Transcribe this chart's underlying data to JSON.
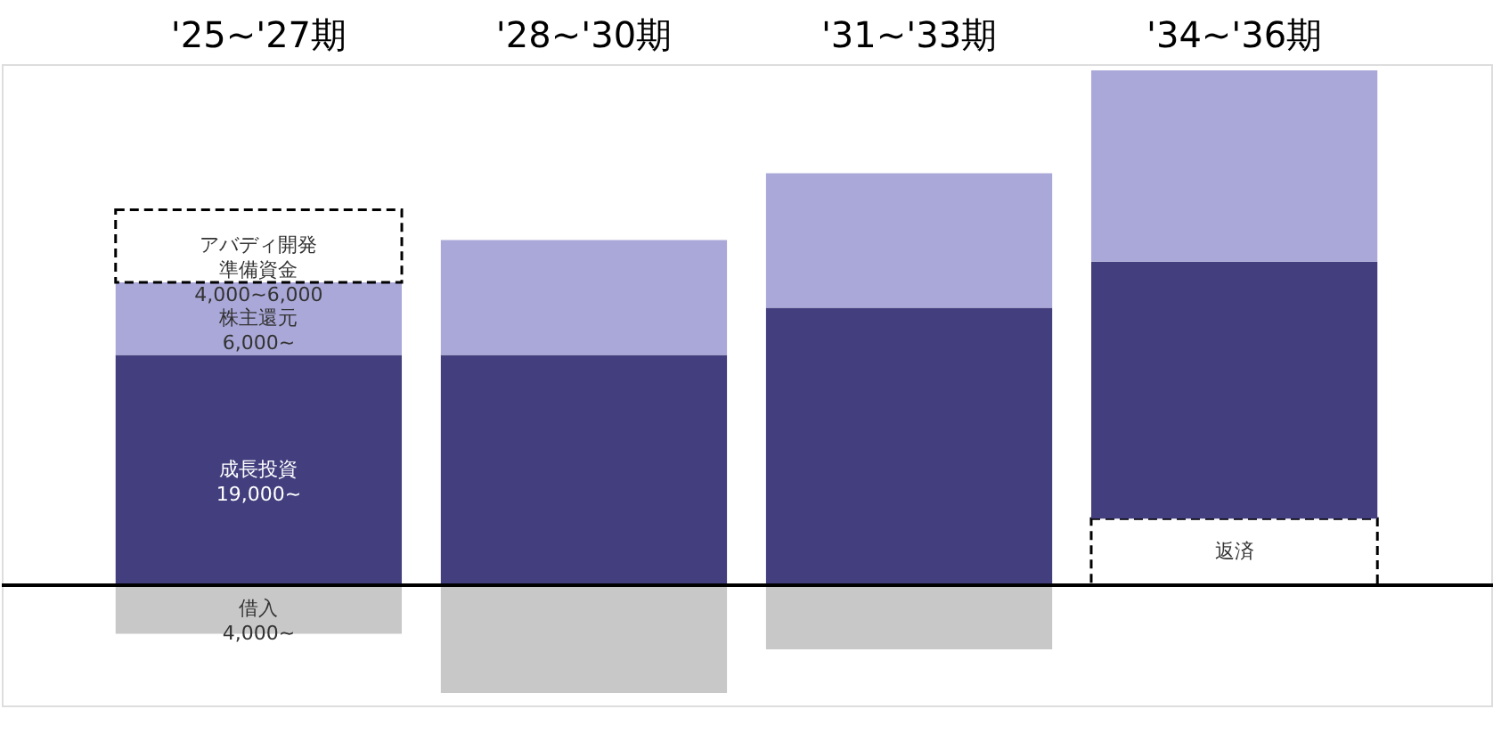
{
  "chart_data": {
    "type": "bar",
    "stacked": true,
    "categories": [
      "'25~'27期",
      "'28~'30期",
      "'31~'33期",
      "'34~'36期"
    ],
    "series": [
      {
        "color": "#ffffff",
        "line_style": "dashed",
        "values": [
          null,
          null,
          null,
          5500
        ],
        "value_labels": [
          null,
          null,
          null,
          "返済"
        ]
      },
      {
        "color": "#433f7e",
        "values": [
          19000,
          19000,
          22900,
          21200
        ],
        "value_labels": [
          "成長投資\n19,000~",
          null,
          null,
          null
        ]
      },
      {
        "color": "#aaa8d8",
        "values": [
          6000,
          9500,
          11100,
          15800
        ],
        "value_labels": [
          "株主還元\n6,000~",
          null,
          null,
          null
        ]
      },
      {
        "color": "#ffffff",
        "line_style": "dashed",
        "values": [
          6000,
          null,
          null,
          null
        ],
        "value_labels": [
          "アバディ開発準備資金\n4,000~6,000",
          null,
          null,
          null
        ]
      },
      {
        "color": "#c8c8c8",
        "values": [
          -4000,
          -8900,
          -5300,
          null
        ],
        "value_labels": [
          "借入\n4,000~",
          null,
          null,
          null
        ]
      }
    ]
  }
}
